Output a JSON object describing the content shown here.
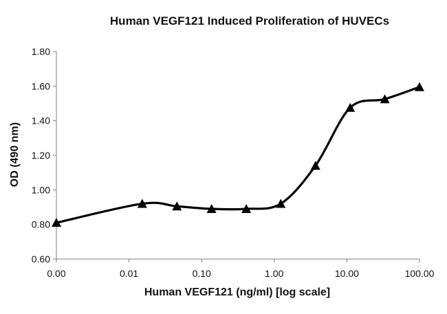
{
  "chart_data": {
    "type": "line",
    "title": "Human VEGF121 Induced Proliferation of HUVECs",
    "xlabel": "Human VEGF121 (ng/ml) [log scale]",
    "ylabel": "OD (490 nm)",
    "x_scale": "log",
    "x_tick_labels": [
      "0.00",
      "0.01",
      "0.10",
      "1.00",
      "10.00",
      "100.00"
    ],
    "y_tick_labels": [
      "0.60",
      "0.80",
      "1.00",
      "1.20",
      "1.40",
      "1.60",
      "1.80"
    ],
    "y_ticks": [
      0.6,
      0.8,
      1.0,
      1.2,
      1.4,
      1.6,
      1.8
    ],
    "ylim": [
      0.6,
      1.8
    ],
    "grid": false,
    "legend": "none",
    "marker": "triangle",
    "color": "#000000",
    "series": [
      {
        "x": [
          0.001,
          0.0152,
          0.0457,
          0.137,
          0.412,
          1.23,
          3.7,
          11.1,
          33.3,
          100
        ],
        "y": [
          0.81,
          0.92,
          0.905,
          0.89,
          0.89,
          0.92,
          1.14,
          1.475,
          1.525,
          1.595
        ]
      }
    ]
  }
}
